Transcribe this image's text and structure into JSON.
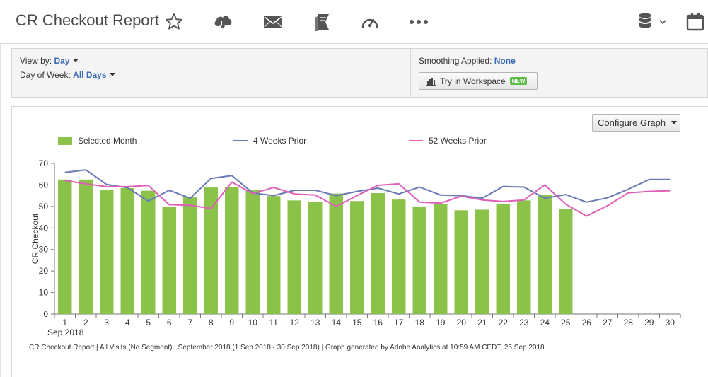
{
  "header": {
    "title": "CR Checkout Report",
    "icons": [
      "star-icon",
      "cloud-download-icon",
      "mail-icon",
      "bookmark-icon",
      "dashboard-icon",
      "more-icon",
      "database-icon",
      "calendar-icon"
    ]
  },
  "controls": {
    "view_by_label": "View by:",
    "view_by_value": "Day",
    "day_of_week_label": "Day of Week:",
    "day_of_week_value": "All Days",
    "smoothing_label": "Smoothing Applied:",
    "smoothing_value": "None",
    "workspace_button": "Try in Workspace",
    "workspace_badge": "NEW"
  },
  "graph": {
    "configure_button": "Configure Graph",
    "footnote": "CR Checkout Report | All Visits (No Segment) | September 2018 (1 Sep 2018 - 30 Sep 2018) | Graph generated by Adobe Analytics at 10:59 AM CEDT, 25 Sep 2018"
  },
  "colors": {
    "bar": "#8bc34a",
    "line_4w": "#6a7bb3",
    "line_52w": "#de5fb8",
    "link": "#3b69b6"
  },
  "chart_data": {
    "type": "bar",
    "ylabel": "CR Checkout",
    "xlabel": "",
    "month_label": "Sep 2018",
    "ylim": [
      0,
      70
    ],
    "yticks": [
      0,
      10,
      20,
      30,
      40,
      50,
      60,
      70
    ],
    "grid": false,
    "legend_position": "top",
    "categories": [
      "1",
      "2",
      "3",
      "4",
      "5",
      "6",
      "7",
      "8",
      "9",
      "10",
      "11",
      "12",
      "13",
      "14",
      "15",
      "16",
      "17",
      "18",
      "19",
      "20",
      "21",
      "22",
      "23",
      "24",
      "25",
      "26",
      "27",
      "28",
      "29",
      "30"
    ],
    "series": [
      {
        "name": "Selected Month",
        "kind": "bar",
        "values": [
          62.5,
          62.5,
          57.5,
          58.5,
          57.3,
          49.8,
          54.2,
          58.8,
          59.0,
          57.5,
          54.8,
          52.8,
          52.2,
          56.0,
          52.5,
          56.2,
          53.2,
          50.0,
          51.2,
          48.2,
          48.5,
          51.3,
          52.8,
          55.3,
          48.8,
          null,
          null,
          null,
          null,
          null
        ]
      },
      {
        "name": "4 Weeks Prior",
        "kind": "line",
        "values": [
          65.8,
          67.0,
          60.2,
          58.7,
          52.5,
          57.5,
          53.8,
          63.0,
          64.3,
          56.3,
          55.0,
          57.5,
          57.5,
          55.0,
          57.0,
          58.5,
          55.8,
          59.0,
          55.3,
          55.0,
          53.8,
          59.3,
          59.0,
          53.8,
          55.5,
          52.0,
          54.0,
          58.0,
          62.5,
          62.5
        ]
      },
      {
        "name": "52 Weeks Prior",
        "kind": "line",
        "values": [
          62.0,
          60.5,
          59.2,
          59.2,
          59.7,
          50.8,
          50.5,
          49.0,
          61.3,
          56.0,
          58.8,
          55.8,
          55.3,
          50.0,
          55.0,
          59.8,
          60.5,
          52.0,
          51.5,
          54.8,
          53.0,
          52.3,
          53.0,
          60.0,
          51.0,
          45.5,
          50.3,
          56.3,
          57.0,
          57.3
        ]
      }
    ]
  }
}
